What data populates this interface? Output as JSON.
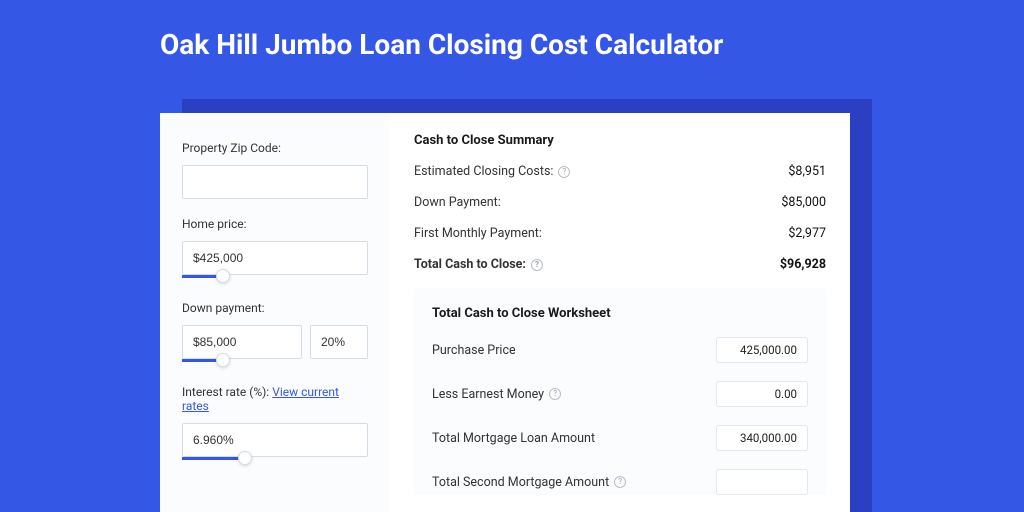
{
  "colors": {
    "page_bg": "#3457e5",
    "shadow_bg": "#2a3fc2",
    "card_bg": "#ffffff",
    "left_panel_bg": "#fbfcfe",
    "input_border": "#d7dbe6",
    "link": "#3457e5",
    "help_border": "#b8bdc9"
  },
  "page_title": "Oak Hill Jumbo Loan Closing Cost Calculator",
  "left": {
    "zip_label": "Property Zip Code:",
    "zip_value": "",
    "home_price_label": "Home price:",
    "home_price_value": "$425,000",
    "home_price_slider": {
      "track_pct": 22,
      "thumb_pct": 22
    },
    "down_payment_label": "Down payment:",
    "down_payment_value": "$85,000",
    "down_payment_pct": "20%",
    "down_payment_slider": {
      "track_pct": 22,
      "thumb_pct": 22
    },
    "interest_label": "Interest rate (%):",
    "interest_link": "View current rates",
    "interest_value": "6.960%",
    "interest_slider": {
      "track_pct": 34,
      "thumb_pct": 34
    }
  },
  "summary": {
    "title": "Cash to Close Summary",
    "rows": [
      {
        "label": "Estimated Closing Costs:",
        "value": "$8,951",
        "help": true,
        "bold": false
      },
      {
        "label": "Down Payment:",
        "value": "$85,000",
        "help": false,
        "bold": false
      },
      {
        "label": "First Monthly Payment:",
        "value": "$2,977",
        "help": false,
        "bold": false
      },
      {
        "label": "Total Cash to Close:",
        "value": "$96,928",
        "help": true,
        "bold": true
      }
    ]
  },
  "worksheet": {
    "title": "Total Cash to Close Worksheet",
    "rows": [
      {
        "label": "Purchase Price",
        "value": "425,000.00",
        "help": false
      },
      {
        "label": "Less Earnest Money",
        "value": "0.00",
        "help": true
      },
      {
        "label": "Total Mortgage Loan Amount",
        "value": "340,000.00",
        "help": false
      },
      {
        "label": "Total Second Mortgage Amount",
        "value": "",
        "help": true
      }
    ]
  }
}
